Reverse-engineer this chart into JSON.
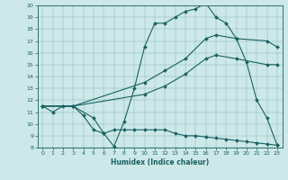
{
  "title": "",
  "xlabel": "Humidex (Indice chaleur)",
  "bg_color": "#cce8e8",
  "line_color": "#1a6060",
  "xlim": [
    -0.5,
    23.5
  ],
  "ylim": [
    8,
    20
  ],
  "xticks": [
    0,
    1,
    2,
    3,
    4,
    5,
    6,
    7,
    8,
    9,
    10,
    11,
    12,
    13,
    14,
    15,
    16,
    17,
    18,
    19,
    20,
    21,
    22,
    23
  ],
  "yticks": [
    8,
    9,
    10,
    11,
    12,
    13,
    14,
    15,
    16,
    17,
    18,
    19,
    20
  ],
  "series": [
    {
      "x": [
        0,
        1,
        2,
        3,
        4,
        5,
        6,
        7,
        8,
        9,
        10,
        11,
        12,
        13,
        14,
        15,
        16,
        17,
        18,
        19,
        20,
        21,
        22,
        23
      ],
      "y": [
        11.5,
        11.0,
        11.5,
        11.5,
        10.7,
        9.5,
        9.2,
        8.1,
        10.2,
        13.0,
        16.5,
        18.5,
        18.5,
        19.0,
        19.5,
        19.7,
        20.2,
        19.0,
        18.5,
        17.2,
        15.2,
        12.0,
        10.5,
        8.2
      ]
    },
    {
      "x": [
        0,
        3,
        10,
        12,
        14,
        16,
        17,
        19,
        22,
        23
      ],
      "y": [
        11.5,
        11.5,
        13.5,
        14.5,
        15.5,
        17.2,
        17.5,
        17.2,
        17.0,
        16.5
      ]
    },
    {
      "x": [
        0,
        3,
        10,
        12,
        14,
        16,
        17,
        19,
        22,
        23
      ],
      "y": [
        11.5,
        11.5,
        12.5,
        13.2,
        14.2,
        15.5,
        15.8,
        15.5,
        15.0,
        15.0
      ]
    },
    {
      "x": [
        0,
        3,
        5,
        6,
        7,
        8,
        9,
        10,
        11,
        12,
        13,
        14,
        15,
        16,
        17,
        18,
        19,
        20,
        21,
        22,
        23
      ],
      "y": [
        11.5,
        11.5,
        10.5,
        9.2,
        9.5,
        9.5,
        9.5,
        9.5,
        9.5,
        9.5,
        9.2,
        9.0,
        9.0,
        8.9,
        8.8,
        8.7,
        8.6,
        8.5,
        8.4,
        8.3,
        8.2
      ]
    }
  ]
}
